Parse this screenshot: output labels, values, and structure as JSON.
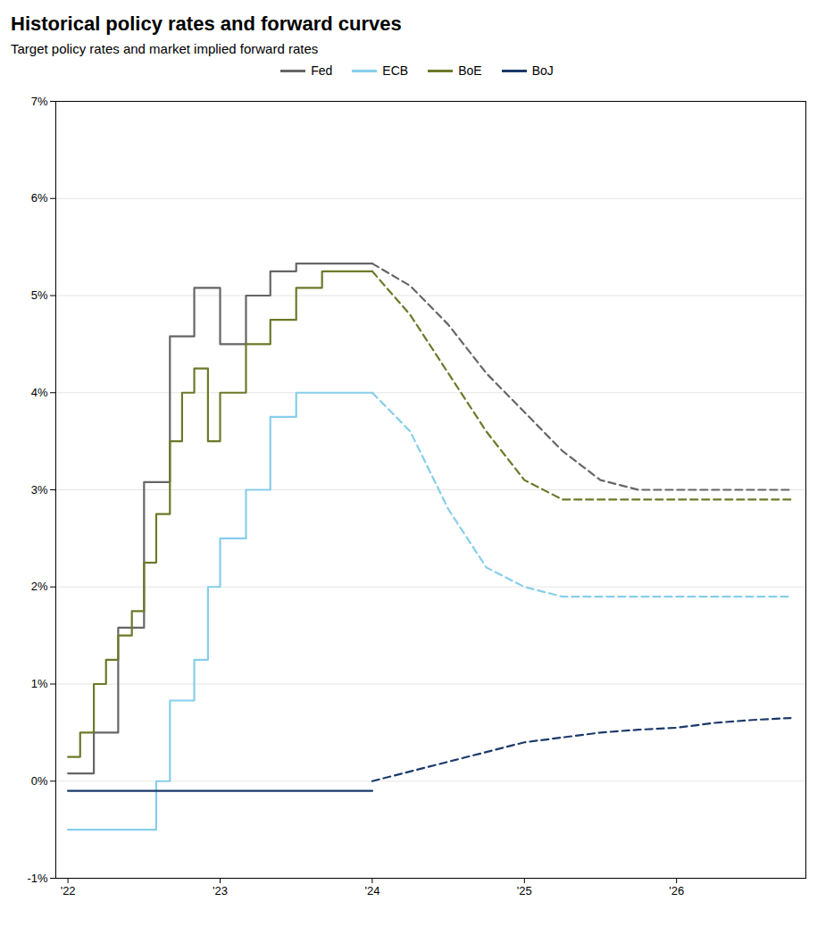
{
  "chart_data": {
    "type": "line",
    "title": "Historical policy rates and forward curves",
    "subtitle": "Target policy rates and market implied forward rates",
    "xlim": [
      2021.92,
      2026.85
    ],
    "xticks": [
      {
        "value": 2022.0,
        "label": "'22"
      },
      {
        "value": 2023.0,
        "label": "'23"
      },
      {
        "value": 2024.0,
        "label": "'24"
      },
      {
        "value": 2025.0,
        "label": "'25"
      },
      {
        "value": 2026.0,
        "label": "'26"
      }
    ],
    "ylim": [
      -0.01,
      0.07
    ],
    "yticks": [
      {
        "value": -0.01,
        "label": "-1%"
      },
      {
        "value": 0.0,
        "label": "0%"
      },
      {
        "value": 0.01,
        "label": "1%"
      },
      {
        "value": 0.02,
        "label": "2%"
      },
      {
        "value": 0.03,
        "label": "3%"
      },
      {
        "value": 0.04,
        "label": "4%"
      },
      {
        "value": 0.05,
        "label": "5%"
      },
      {
        "value": 0.06,
        "label": "6%"
      },
      {
        "value": 0.07,
        "label": "7%"
      }
    ],
    "grid": true,
    "legend": "top",
    "series": [
      {
        "name": "Fed",
        "color": "#666666",
        "type": "step",
        "line_style": "solid",
        "x": [
          2022.0,
          2022.17,
          2022.33,
          2022.5,
          2022.67,
          2022.83,
          2023.0,
          2023.17,
          2023.33,
          2023.5,
          2023.67,
          2023.83,
          2024.0
        ],
        "values": [
          0.0008,
          0.005,
          0.0158,
          0.0308,
          0.0458,
          0.0508,
          0.045,
          0.05,
          0.0525,
          0.0533,
          0.0533,
          0.0533,
          0.0533
        ]
      },
      {
        "name": "Fed",
        "color": "#666666",
        "type": "line",
        "line_style": "dashed",
        "x": [
          2024.0,
          2024.25,
          2024.5,
          2024.75,
          2025.0,
          2025.25,
          2025.5,
          2025.75,
          2026.0,
          2026.25,
          2026.5,
          2026.75
        ],
        "values": [
          0.0533,
          0.051,
          0.047,
          0.042,
          0.038,
          0.034,
          0.031,
          0.03,
          0.03,
          0.03,
          0.03,
          0.03
        ]
      },
      {
        "name": "ECB",
        "color": "#87CEEB",
        "type": "step",
        "line_style": "solid",
        "x": [
          2022.0,
          2022.17,
          2022.33,
          2022.5,
          2022.58,
          2022.67,
          2022.83,
          2022.92,
          2023.0,
          2023.17,
          2023.33,
          2023.5,
          2023.67,
          2023.83,
          2024.0
        ],
        "values": [
          -0.005,
          -0.005,
          -0.005,
          -0.005,
          0.0,
          0.0083,
          0.0125,
          0.02,
          0.025,
          0.03,
          0.0375,
          0.04,
          0.04,
          0.04,
          0.04
        ]
      },
      {
        "name": "ECB",
        "color": "#87CEEB",
        "type": "line",
        "line_style": "dashed",
        "x": [
          2024.0,
          2024.25,
          2024.5,
          2024.75,
          2025.0,
          2025.25,
          2025.5,
          2025.75,
          2026.0,
          2026.25,
          2026.5,
          2026.75
        ],
        "values": [
          0.04,
          0.036,
          0.028,
          0.022,
          0.02,
          0.019,
          0.019,
          0.019,
          0.019,
          0.019,
          0.019,
          0.019
        ]
      },
      {
        "name": "BoE",
        "color": "#6B7A2A",
        "type": "step",
        "line_style": "solid",
        "x": [
          2022.0,
          2022.08,
          2022.17,
          2022.25,
          2022.33,
          2022.42,
          2022.5,
          2022.58,
          2022.67,
          2022.75,
          2022.83,
          2022.92,
          2023.0,
          2023.17,
          2023.33,
          2023.5,
          2023.67,
          2023.83,
          2024.0
        ],
        "values": [
          0.0025,
          0.005,
          0.01,
          0.0125,
          0.015,
          0.0175,
          0.0225,
          0.0275,
          0.035,
          0.04,
          0.0425,
          0.035,
          0.04,
          0.045,
          0.0475,
          0.0508,
          0.0525,
          0.0525,
          0.0525
        ]
      },
      {
        "name": "BoE",
        "color": "#6B7A2A",
        "type": "line",
        "line_style": "dashed",
        "x": [
          2024.0,
          2024.25,
          2024.5,
          2024.75,
          2025.0,
          2025.25,
          2025.5,
          2025.75,
          2026.0,
          2026.25,
          2026.5,
          2026.75
        ],
        "values": [
          0.0525,
          0.048,
          0.042,
          0.036,
          0.031,
          0.029,
          0.029,
          0.029,
          0.029,
          0.029,
          0.029,
          0.029
        ]
      },
      {
        "name": "BoJ",
        "color": "#1B3A6B",
        "type": "line",
        "line_style": "solid",
        "x": [
          2022.0,
          2024.0
        ],
        "values": [
          -0.001,
          -0.001
        ]
      },
      {
        "name": "BoJ",
        "color": "#1B3A6B",
        "type": "line",
        "line_style": "dashed",
        "x": [
          2024.0,
          2024.25,
          2024.5,
          2024.75,
          2025.0,
          2025.25,
          2025.5,
          2025.75,
          2026.0,
          2026.25,
          2026.5,
          2026.75
        ],
        "values": [
          0.0,
          0.001,
          0.002,
          0.003,
          0.004,
          0.0045,
          0.005,
          0.0053,
          0.0055,
          0.006,
          0.0063,
          0.0065
        ]
      }
    ]
  }
}
